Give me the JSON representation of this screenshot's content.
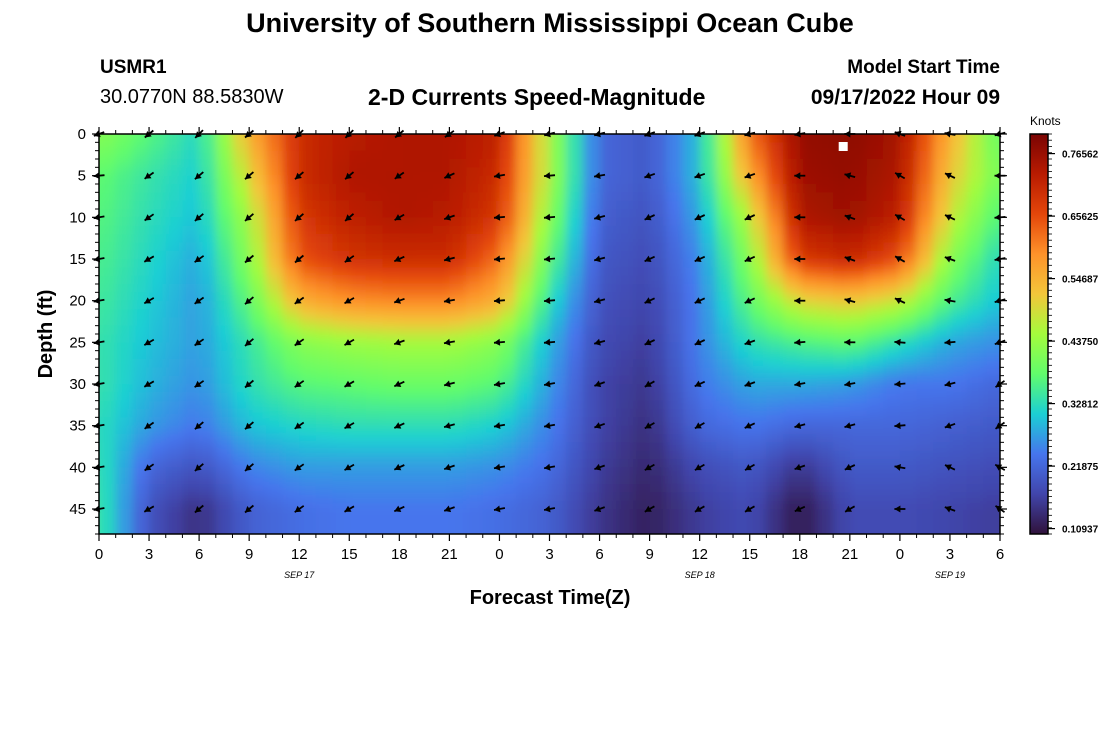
{
  "titles": {
    "top": "University of Southern Mississippi Ocean Cube",
    "bottom": "University of Southern Mississippi Ocean Cube"
  },
  "station": {
    "id": "USMR1",
    "coords": "30.0770N  88.5830W"
  },
  "plot_title": "2-D Currents Speed-Magnitude",
  "model_start": {
    "label": "Model Start Time",
    "value": "09/17/2022 Hour 09"
  },
  "chart_data": {
    "type": "heatmap",
    "title": "2-D Currents Speed-Magnitude",
    "xlabel": "Forecast Time(Z)",
    "ylabel": "Depth (ft)",
    "x_ticks": [
      "0",
      "3",
      "6",
      "9",
      "12",
      "15",
      "18",
      "21",
      "0",
      "3",
      "6",
      "9",
      "12",
      "15",
      "18",
      "21",
      "0",
      "3",
      "6"
    ],
    "x_range_hours": [
      0,
      54
    ],
    "date_labels": [
      {
        "text": "SEP 17",
        "hour": 12
      },
      {
        "text": "SEP 18",
        "hour": 36
      },
      {
        "text": "SEP 19",
        "hour": 51
      }
    ],
    "y_ticks": [
      0,
      5,
      10,
      15,
      20,
      25,
      30,
      35,
      40,
      45
    ],
    "y_range": [
      0,
      48
    ],
    "y_inverted": true,
    "colorbar": {
      "unit": "Knots",
      "min": 0.1,
      "max": 0.8,
      "tick_labels": [
        "0.76562",
        "0.65625",
        "0.54687",
        "0.43750",
        "0.32812",
        "0.21875",
        "0.10937"
      ],
      "tick_values": [
        0.76562,
        0.65625,
        0.54687,
        0.4375,
        0.32812,
        0.21875,
        0.10937
      ]
    },
    "grid_hours": [
      0,
      3,
      6,
      9,
      12,
      15,
      18,
      21,
      24,
      27,
      30,
      33,
      36,
      39,
      42,
      45,
      48,
      51,
      54
    ],
    "grid_depths": [
      0,
      5,
      10,
      15,
      20,
      25,
      30,
      35,
      40,
      45
    ],
    "speed_knots": [
      [
        0.42,
        0.37,
        0.32,
        0.55,
        0.7,
        0.73,
        0.74,
        0.74,
        0.72,
        0.45,
        0.22,
        0.2,
        0.3,
        0.62,
        0.77,
        0.78,
        0.75,
        0.55,
        0.38
      ],
      [
        0.38,
        0.34,
        0.31,
        0.5,
        0.7,
        0.74,
        0.74,
        0.74,
        0.7,
        0.45,
        0.22,
        0.2,
        0.3,
        0.56,
        0.76,
        0.77,
        0.74,
        0.52,
        0.4
      ],
      [
        0.37,
        0.33,
        0.3,
        0.45,
        0.68,
        0.72,
        0.74,
        0.73,
        0.68,
        0.42,
        0.21,
        0.19,
        0.28,
        0.47,
        0.74,
        0.76,
        0.72,
        0.48,
        0.36
      ],
      [
        0.36,
        0.32,
        0.28,
        0.42,
        0.65,
        0.69,
        0.7,
        0.7,
        0.62,
        0.38,
        0.2,
        0.18,
        0.26,
        0.42,
        0.68,
        0.71,
        0.65,
        0.42,
        0.32
      ],
      [
        0.35,
        0.31,
        0.27,
        0.38,
        0.55,
        0.59,
        0.6,
        0.6,
        0.55,
        0.33,
        0.19,
        0.17,
        0.25,
        0.38,
        0.5,
        0.52,
        0.48,
        0.36,
        0.3
      ],
      [
        0.34,
        0.3,
        0.27,
        0.34,
        0.42,
        0.44,
        0.45,
        0.45,
        0.42,
        0.29,
        0.18,
        0.16,
        0.25,
        0.33,
        0.36,
        0.38,
        0.33,
        0.28,
        0.26
      ],
      [
        0.34,
        0.29,
        0.26,
        0.33,
        0.37,
        0.38,
        0.39,
        0.39,
        0.37,
        0.27,
        0.17,
        0.15,
        0.24,
        0.28,
        0.28,
        0.27,
        0.24,
        0.24,
        0.22
      ],
      [
        0.33,
        0.27,
        0.24,
        0.3,
        0.32,
        0.33,
        0.33,
        0.33,
        0.31,
        0.25,
        0.17,
        0.14,
        0.22,
        0.24,
        0.22,
        0.22,
        0.22,
        0.21,
        0.2
      ],
      [
        0.34,
        0.22,
        0.19,
        0.25,
        0.27,
        0.27,
        0.27,
        0.27,
        0.26,
        0.23,
        0.16,
        0.13,
        0.18,
        0.2,
        0.15,
        0.2,
        0.2,
        0.19,
        0.18
      ],
      [
        0.35,
        0.19,
        0.14,
        0.21,
        0.23,
        0.24,
        0.24,
        0.24,
        0.23,
        0.21,
        0.15,
        0.12,
        0.16,
        0.18,
        0.11,
        0.18,
        0.18,
        0.17,
        0.16
      ]
    ],
    "direction_deg": [
      [
        250,
        230,
        225,
        230,
        225,
        225,
        230,
        235,
        250,
        255,
        255,
        250,
        250,
        255,
        260,
        270,
        290,
        280,
        255
      ],
      [
        265,
        235,
        230,
        230,
        230,
        230,
        235,
        245,
        260,
        265,
        260,
        250,
        250,
        250,
        270,
        285,
        300,
        295,
        270
      ],
      [
        260,
        235,
        230,
        230,
        230,
        230,
        240,
        250,
        265,
        265,
        255,
        245,
        245,
        245,
        270,
        290,
        300,
        295,
        265
      ],
      [
        260,
        240,
        235,
        230,
        230,
        235,
        245,
        255,
        265,
        265,
        255,
        245,
        245,
        245,
        270,
        290,
        300,
        290,
        260
      ],
      [
        260,
        240,
        235,
        230,
        235,
        240,
        250,
        260,
        265,
        265,
        255,
        245,
        245,
        245,
        270,
        285,
        295,
        280,
        255
      ],
      [
        260,
        240,
        235,
        230,
        235,
        240,
        250,
        260,
        265,
        265,
        255,
        245,
        245,
        250,
        265,
        270,
        275,
        265,
        250
      ],
      [
        260,
        240,
        235,
        230,
        235,
        240,
        245,
        255,
        260,
        260,
        250,
        240,
        245,
        250,
        260,
        260,
        265,
        255,
        235
      ],
      [
        260,
        235,
        230,
        230,
        235,
        240,
        245,
        255,
        260,
        260,
        250,
        240,
        240,
        245,
        255,
        255,
        265,
        250,
        235
      ],
      [
        260,
        235,
        230,
        230,
        235,
        240,
        245,
        250,
        260,
        260,
        250,
        240,
        240,
        240,
        250,
        245,
        280,
        295,
        300
      ],
      [
        260,
        240,
        230,
        230,
        235,
        240,
        245,
        250,
        260,
        260,
        250,
        240,
        240,
        240,
        245,
        240,
        270,
        290,
        305
      ]
    ],
    "marker": {
      "hour": 44.6,
      "depth": 1.5,
      "color": "#ffffff"
    }
  }
}
